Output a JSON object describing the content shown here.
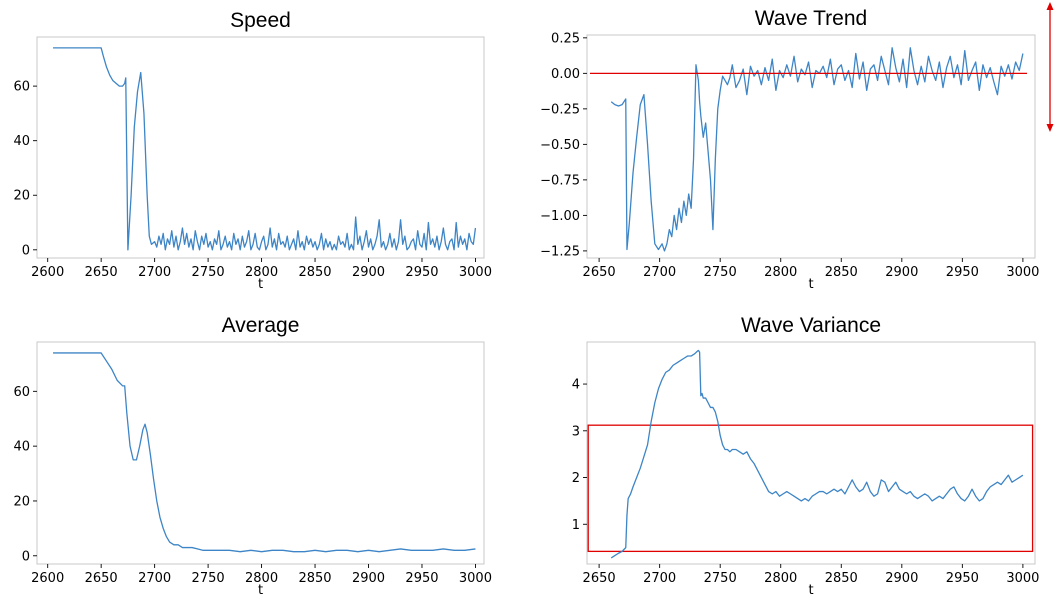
{
  "colors": {
    "line": "#3d85c6",
    "annotation": "#e00000",
    "axis": "#c8c8c8",
    "text": "#000000"
  },
  "chart_data": [
    {
      "type": "line",
      "title": "Speed",
      "xlabel": "t",
      "ylabel": "",
      "xlim": [
        2590,
        3008
      ],
      "ylim": [
        -3,
        78
      ],
      "xticks": [
        2600,
        2650,
        2700,
        2750,
        2800,
        2850,
        2900,
        2950,
        3000
      ],
      "yticks": [
        0,
        20,
        40,
        60
      ],
      "series": [
        {
          "x": [
            2605,
            2615,
            2625,
            2635,
            2645,
            2650,
            2652,
            2655,
            2658,
            2661,
            2664,
            2667,
            2670,
            2672,
            2673,
            2675,
            2678,
            2681,
            2684,
            2687,
            2690,
            2693,
            2695,
            2697,
            2700,
            2702,
            2704,
            2706,
            2708,
            2710,
            2712,
            2714,
            2716,
            2718,
            2720,
            2722,
            2724,
            2726,
            2728,
            2730,
            2732,
            2734,
            2736,
            2738,
            2740,
            2742,
            2744,
            2746,
            2748,
            2750,
            2752,
            2754,
            2756,
            2758,
            2760,
            2762,
            2764,
            2766,
            2768,
            2770,
            2772,
            2774,
            2776,
            2778,
            2780,
            2782,
            2784,
            2786,
            2788,
            2790,
            2792,
            2794,
            2796,
            2798,
            2800,
            2802,
            2804,
            2806,
            2808,
            2810,
            2812,
            2814,
            2816,
            2818,
            2820,
            2822,
            2824,
            2826,
            2828,
            2830,
            2832,
            2834,
            2836,
            2838,
            2840,
            2842,
            2844,
            2846,
            2848,
            2850,
            2852,
            2854,
            2856,
            2858,
            2860,
            2862,
            2864,
            2866,
            2868,
            2870,
            2872,
            2874,
            2876,
            2878,
            2880,
            2882,
            2884,
            2886,
            2888,
            2890,
            2892,
            2894,
            2896,
            2898,
            2900,
            2902,
            2904,
            2906,
            2908,
            2910,
            2912,
            2914,
            2916,
            2918,
            2920,
            2922,
            2924,
            2926,
            2928,
            2930,
            2932,
            2934,
            2936,
            2938,
            2940,
            2942,
            2944,
            2946,
            2948,
            2950,
            2952,
            2954,
            2956,
            2958,
            2960,
            2962,
            2964,
            2966,
            2968,
            2970,
            2972,
            2974,
            2976,
            2978,
            2980,
            2982,
            2984,
            2986,
            2988,
            2990,
            2992,
            2994,
            2996,
            2998,
            3000
          ],
          "y": [
            74,
            74,
            74,
            74,
            74,
            74,
            71,
            67,
            64,
            62,
            61,
            60,
            60,
            61,
            63,
            0,
            20,
            45,
            58,
            65,
            50,
            20,
            5,
            2,
            3,
            1,
            5,
            2,
            6,
            0,
            4,
            2,
            7,
            1,
            5,
            0,
            3,
            8,
            2,
            6,
            1,
            4,
            0,
            7,
            3,
            0,
            5,
            2,
            6,
            1,
            3,
            0,
            4,
            2,
            7,
            0,
            2,
            5,
            1,
            3,
            0,
            6,
            2,
            4,
            0,
            5,
            1,
            3,
            7,
            0,
            2,
            6,
            1,
            0,
            3,
            5,
            0,
            2,
            8,
            1,
            4,
            0,
            6,
            2,
            3,
            1,
            5,
            0,
            2,
            4,
            0,
            7,
            1,
            3,
            0,
            5,
            2,
            4,
            1,
            3,
            0,
            2,
            6,
            0,
            4,
            1,
            3,
            0,
            2,
            0,
            5,
            2,
            3,
            1,
            6,
            0,
            2,
            0,
            12,
            2,
            5,
            0,
            3,
            7,
            1,
            4,
            0,
            2,
            5,
            11,
            1,
            3,
            0,
            2,
            6,
            1,
            4,
            0,
            3,
            11,
            2,
            5,
            0,
            1,
            3,
            4,
            0,
            7,
            2,
            1,
            6,
            0,
            10,
            2,
            4,
            1,
            5,
            0,
            3,
            8,
            2,
            0,
            3,
            4,
            0,
            10,
            1,
            5,
            2,
            4,
            0,
            6,
            3,
            2,
            8
          ]
        }
      ]
    },
    {
      "type": "line",
      "title": "Wave Trend",
      "xlabel": "t",
      "ylabel": "",
      "xlim": [
        2640,
        3010
      ],
      "ylim": [
        -1.3,
        0.27
      ],
      "xticks": [
        2650,
        2700,
        2750,
        2800,
        2850,
        2900,
        2950,
        3000
      ],
      "yticks": [
        0.25,
        0.0,
        -0.25,
        -0.5,
        -0.75,
        -1.0,
        -1.25
      ],
      "reference_line_y": 0.0,
      "series": [
        {
          "x": [
            2660,
            2663,
            2666,
            2669,
            2672,
            2673,
            2675,
            2678,
            2681,
            2684,
            2687,
            2690,
            2693,
            2696,
            2699,
            2702,
            2704,
            2706,
            2708,
            2710,
            2712,
            2714,
            2716,
            2718,
            2720,
            2722,
            2724,
            2726,
            2728,
            2730,
            2732,
            2733,
            2734,
            2736,
            2738,
            2740,
            2742,
            2744,
            2746,
            2748,
            2750,
            2752,
            2754,
            2756,
            2758,
            2760,
            2763,
            2766,
            2769,
            2772,
            2775,
            2778,
            2781,
            2784,
            2787,
            2790,
            2793,
            2796,
            2799,
            2802,
            2805,
            2808,
            2811,
            2814,
            2817,
            2820,
            2823,
            2826,
            2829,
            2832,
            2835,
            2838,
            2841,
            2844,
            2847,
            2850,
            2853,
            2856,
            2859,
            2862,
            2865,
            2868,
            2871,
            2874,
            2877,
            2880,
            2883,
            2886,
            2889,
            2892,
            2895,
            2898,
            2901,
            2904,
            2907,
            2910,
            2913,
            2916,
            2919,
            2922,
            2925,
            2928,
            2931,
            2934,
            2937,
            2940,
            2943,
            2946,
            2949,
            2952,
            2955,
            2958,
            2961,
            2964,
            2967,
            2970,
            2973,
            2976,
            2979,
            2982,
            2985,
            2988,
            2991,
            2994,
            2997,
            3000
          ],
          "y": [
            -0.2,
            -0.22,
            -0.23,
            -0.22,
            -0.18,
            -1.24,
            -1.05,
            -0.7,
            -0.45,
            -0.22,
            -0.15,
            -0.5,
            -0.9,
            -1.2,
            -1.24,
            -1.2,
            -1.25,
            -1.2,
            -1.1,
            -1.15,
            -1.0,
            -1.1,
            -0.95,
            -1.05,
            -0.9,
            -1.0,
            -0.85,
            -0.95,
            -0.6,
            0.06,
            -0.05,
            -0.2,
            -0.3,
            -0.45,
            -0.35,
            -0.55,
            -0.75,
            -1.1,
            -0.6,
            -0.25,
            -0.12,
            -0.02,
            -0.05,
            -0.08,
            -0.03,
            0.06,
            -0.1,
            -0.05,
            0.03,
            -0.15,
            0.05,
            -0.02,
            0.02,
            -0.08,
            0.04,
            -0.05,
            0.1,
            -0.12,
            0.02,
            -0.03,
            0.06,
            -0.02,
            0.12,
            -0.06,
            0.03,
            -0.01,
            0.08,
            -0.1,
            0.02,
            0.0,
            0.05,
            -0.03,
            0.1,
            -0.08,
            0.03,
            0.06,
            -0.05,
            0.02,
            -0.1,
            0.14,
            -0.04,
            0.08,
            -0.12,
            0.03,
            0.06,
            -0.05,
            0.12,
            0.02,
            -0.08,
            0.18,
            0.04,
            -0.06,
            0.1,
            -0.1,
            0.18,
            0.02,
            -0.08,
            0.05,
            -0.06,
            0.12,
            0.02,
            -0.05,
            0.08,
            -0.1,
            0.04,
            0.12,
            -0.03,
            0.06,
            -0.08,
            0.16,
            -0.05,
            0.02,
            0.08,
            -0.12,
            0.06,
            -0.03,
            0.04,
            -0.06,
            -0.15,
            0.05,
            -0.02,
            0.06,
            -0.04,
            0.08,
            0.02,
            0.14
          ]
        }
      ]
    },
    {
      "type": "line",
      "title": "Average",
      "xlabel": "t",
      "ylabel": "",
      "xlim": [
        2590,
        3008
      ],
      "ylim": [
        -3,
        78
      ],
      "xticks": [
        2600,
        2650,
        2700,
        2750,
        2800,
        2850,
        2900,
        2950,
        3000
      ],
      "yticks": [
        0,
        20,
        40,
        60
      ],
      "series": [
        {
          "x": [
            2605,
            2615,
            2625,
            2635,
            2645,
            2650,
            2655,
            2660,
            2665,
            2670,
            2672,
            2674,
            2677,
            2680,
            2683,
            2686,
            2689,
            2691,
            2693,
            2696,
            2699,
            2702,
            2705,
            2708,
            2711,
            2714,
            2718,
            2722,
            2726,
            2730,
            2735,
            2740,
            2745,
            2750,
            2760,
            2770,
            2780,
            2790,
            2800,
            2810,
            2820,
            2830,
            2840,
            2850,
            2860,
            2870,
            2880,
            2890,
            2900,
            2910,
            2920,
            2930,
            2940,
            2950,
            2960,
            2970,
            2980,
            2990,
            3000
          ],
          "y": [
            74,
            74,
            74,
            74,
            74,
            74,
            71,
            68,
            64,
            62,
            62,
            52,
            40,
            35,
            35,
            40,
            46,
            48,
            45,
            37,
            28,
            20,
            14,
            10,
            7,
            5,
            4,
            4,
            3,
            3,
            3,
            2.5,
            2,
            2,
            2,
            2,
            1.5,
            2,
            1.5,
            2,
            2,
            1.5,
            1.5,
            2,
            1.5,
            2,
            2,
            1.5,
            2,
            1.5,
            2,
            2.5,
            2,
            2,
            2,
            2.5,
            2,
            2,
            2.5
          ]
        }
      ]
    },
    {
      "type": "line",
      "title": "Wave Variance",
      "xlabel": "t",
      "ylabel": "",
      "xlim": [
        2640,
        3010
      ],
      "ylim": [
        0.15,
        4.9
      ],
      "xticks": [
        2650,
        2700,
        2750,
        2800,
        2850,
        2900,
        2950,
        3000
      ],
      "yticks": [
        1,
        2,
        3,
        4
      ],
      "highlight_box": {
        "x": [
          2641,
          3008
        ],
        "y": [
          0.42,
          3.12
        ]
      },
      "series": [
        {
          "x": [
            2660,
            2663,
            2666,
            2669,
            2672,
            2673,
            2674,
            2676,
            2678,
            2681,
            2684,
            2687,
            2690,
            2693,
            2696,
            2699,
            2702,
            2705,
            2708,
            2711,
            2714,
            2717,
            2720,
            2723,
            2726,
            2729,
            2731,
            2732,
            2733,
            2734,
            2735,
            2736,
            2738,
            2740,
            2742,
            2744,
            2746,
            2748,
            2750,
            2752,
            2754,
            2756,
            2758,
            2760,
            2763,
            2766,
            2769,
            2772,
            2775,
            2778,
            2781,
            2784,
            2787,
            2790,
            2793,
            2796,
            2799,
            2802,
            2805,
            2808,
            2811,
            2814,
            2817,
            2820,
            2823,
            2826,
            2829,
            2832,
            2835,
            2838,
            2841,
            2844,
            2847,
            2850,
            2853,
            2856,
            2859,
            2862,
            2865,
            2868,
            2871,
            2874,
            2877,
            2880,
            2883,
            2886,
            2889,
            2892,
            2895,
            2898,
            2901,
            2904,
            2907,
            2910,
            2913,
            2916,
            2919,
            2922,
            2925,
            2928,
            2931,
            2934,
            2937,
            2940,
            2943,
            2946,
            2949,
            2952,
            2955,
            2958,
            2961,
            2964,
            2967,
            2970,
            2973,
            2976,
            2979,
            2982,
            2985,
            2988,
            2991,
            2994,
            2997,
            3000
          ],
          "y": [
            0.28,
            0.33,
            0.38,
            0.42,
            0.5,
            1.2,
            1.55,
            1.65,
            1.8,
            2.0,
            2.2,
            2.45,
            2.7,
            3.2,
            3.6,
            3.9,
            4.1,
            4.25,
            4.3,
            4.4,
            4.45,
            4.5,
            4.55,
            4.6,
            4.6,
            4.65,
            4.7,
            4.72,
            4.68,
            3.75,
            3.8,
            3.7,
            3.7,
            3.6,
            3.5,
            3.5,
            3.4,
            3.2,
            2.9,
            2.7,
            2.6,
            2.6,
            2.55,
            2.6,
            2.6,
            2.55,
            2.5,
            2.55,
            2.4,
            2.3,
            2.15,
            2.0,
            1.85,
            1.7,
            1.65,
            1.7,
            1.6,
            1.65,
            1.7,
            1.65,
            1.6,
            1.55,
            1.5,
            1.55,
            1.5,
            1.6,
            1.65,
            1.7,
            1.7,
            1.65,
            1.7,
            1.75,
            1.7,
            1.75,
            1.65,
            1.8,
            1.95,
            1.8,
            1.7,
            1.75,
            1.9,
            1.7,
            1.6,
            1.65,
            1.95,
            1.9,
            1.7,
            1.8,
            1.9,
            1.75,
            1.7,
            1.65,
            1.7,
            1.6,
            1.55,
            1.6,
            1.65,
            1.6,
            1.5,
            1.55,
            1.6,
            1.55,
            1.65,
            1.75,
            1.8,
            1.65,
            1.55,
            1.5,
            1.6,
            1.75,
            1.6,
            1.5,
            1.55,
            1.7,
            1.8,
            1.85,
            1.9,
            1.85,
            1.95,
            2.05,
            1.9,
            1.95,
            2.0,
            2.05
          ]
        }
      ]
    }
  ]
}
